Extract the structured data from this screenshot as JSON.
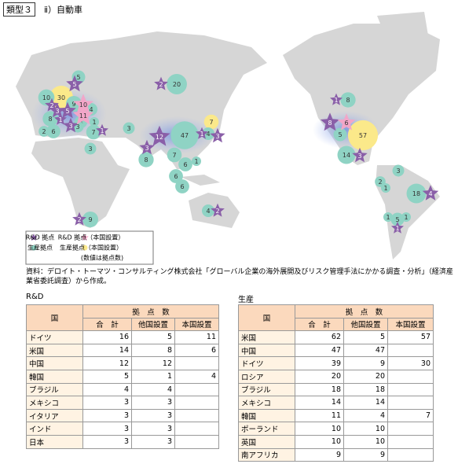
{
  "header": {
    "badge": "類型３",
    "title": "ⅱ）自動車"
  },
  "map": {
    "rd": [
      5,
      2,
      3,
      5,
      1,
      3,
      1,
      2,
      12,
      3,
      1,
      3,
      2,
      2,
      1,
      8,
      3,
      4,
      1
    ],
    "rd_home": [
      10,
      11,
      6
    ],
    "prod": [
      5,
      10,
      9,
      4,
      8,
      4,
      1,
      3,
      2,
      6,
      7,
      3,
      3,
      20,
      47,
      4,
      8,
      7,
      6,
      1,
      6,
      6,
      4,
      9,
      8,
      5,
      14,
      3,
      2,
      1,
      18,
      1,
      5,
      1
    ],
    "prod_home": [
      30,
      7,
      57
    ]
  },
  "legend": {
    "rd": "R&D 拠点",
    "rd_home": "R&D 拠点（本国設置）",
    "prod": "生産拠点",
    "prod_home": "生産拠点（本国設置）",
    "note": "(数値は拠点数)"
  },
  "source": "資料：デロイト・トーマツ・コンサルティング株式会社「グローバル企業の海外展開及びリスク管理手法にかかる調査・分析」（経済産業省委託調査）から作成。",
  "tables": [
    {
      "title": "R&D",
      "header": {
        "country": "国",
        "count": "拠　点　数",
        "cols": [
          "合　計",
          "他国設置",
          "本国設置"
        ]
      },
      "rows": [
        [
          "ドイツ",
          16,
          5,
          11
        ],
        [
          "米国",
          14,
          8,
          6
        ],
        [
          "中国",
          12,
          12,
          null
        ],
        [
          "韓国",
          5,
          1,
          4
        ],
        [
          "ブラジル",
          4,
          4,
          null
        ],
        [
          "メキシコ",
          3,
          3,
          null
        ],
        [
          "イタリア",
          3,
          3,
          null
        ],
        [
          "インド",
          3,
          3,
          null
        ],
        [
          "日本",
          3,
          3,
          null
        ]
      ]
    },
    {
      "title": "生産",
      "header": {
        "country": "国",
        "count": "拠　点　数",
        "cols": [
          "合　計",
          "他国設置",
          "本国設置"
        ]
      },
      "rows": [
        [
          "米国",
          62,
          5,
          57
        ],
        [
          "中国",
          47,
          47,
          null
        ],
        [
          "ドイツ",
          39,
          9,
          30
        ],
        [
          "ロシア",
          20,
          20,
          null
        ],
        [
          "ブラジル",
          18,
          18,
          null
        ],
        [
          "メキシコ",
          14,
          14,
          null
        ],
        [
          "韓国",
          11,
          4,
          7
        ],
        [
          "ポーランド",
          10,
          10,
          null
        ],
        [
          "英国",
          10,
          10,
          null
        ],
        [
          "南アフリカ",
          9,
          9,
          null
        ]
      ]
    }
  ]
}
